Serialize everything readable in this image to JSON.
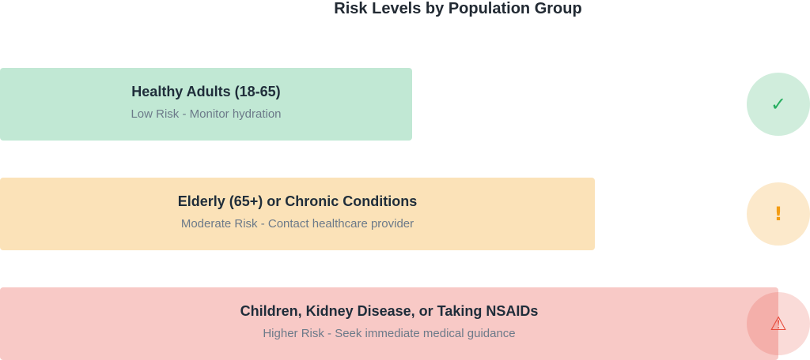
{
  "title": "Risk Levels by Population Group",
  "groups": [
    {
      "label": "Healthy Adults (18-65)",
      "description": "Low Risk - Monitor hydration",
      "icon": "✓"
    },
    {
      "label": "Elderly (65+) or Chronic Conditions",
      "description": "Moderate Risk - Contact healthcare provider",
      "icon": "!"
    },
    {
      "label": "Children, Kidney Disease, or Taking NSAIDs",
      "description": "Higher Risk - Seek immediate medical guidance",
      "icon": "⚠"
    }
  ]
}
